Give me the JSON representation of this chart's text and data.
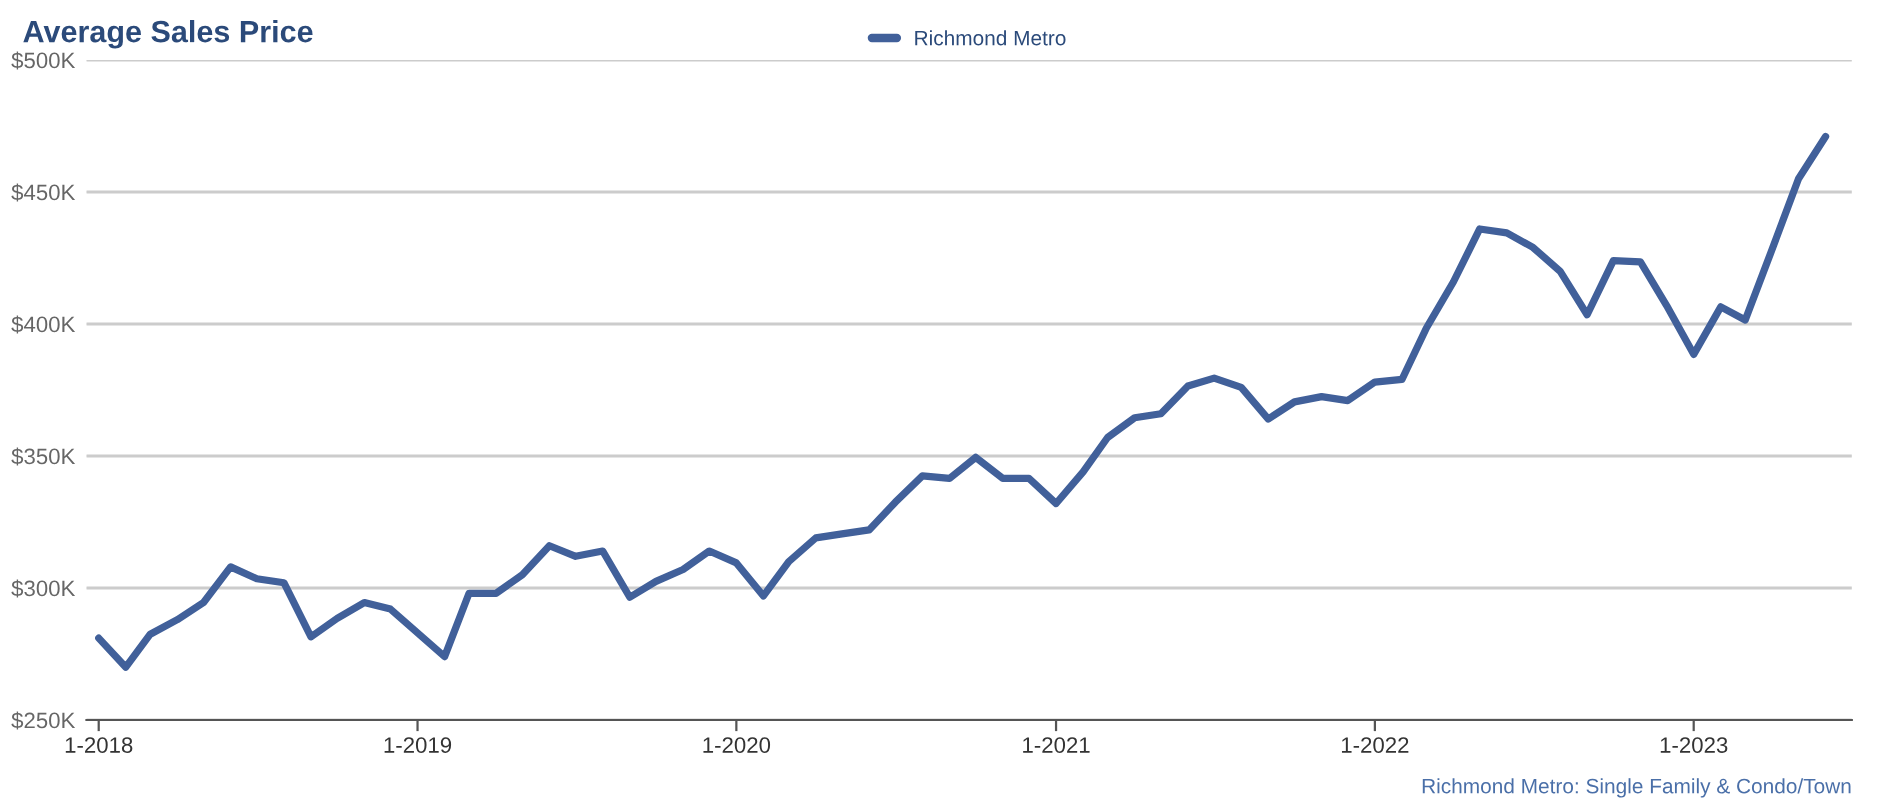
{
  "chart_data": {
    "type": "line",
    "title": "Average Sales Price",
    "x": [
      "2018-01",
      "2018-02",
      "2018-03",
      "2018-04",
      "2018-05",
      "2018-06",
      "2018-07",
      "2018-08",
      "2018-09",
      "2018-10",
      "2018-11",
      "2018-12",
      "2019-01",
      "2019-02",
      "2019-03",
      "2019-04",
      "2019-05",
      "2019-06",
      "2019-07",
      "2019-08",
      "2019-09",
      "2019-10",
      "2019-11",
      "2019-12",
      "2020-01",
      "2020-02",
      "2020-03",
      "2020-04",
      "2020-05",
      "2020-06",
      "2020-07",
      "2020-08",
      "2020-09",
      "2020-10",
      "2020-11",
      "2020-12",
      "2021-01",
      "2021-02",
      "2021-03",
      "2021-04",
      "2021-05",
      "2021-06",
      "2021-07",
      "2021-08",
      "2021-09",
      "2021-10",
      "2021-11",
      "2021-12",
      "2022-01",
      "2022-02",
      "2022-03",
      "2022-04",
      "2022-05",
      "2022-06",
      "2022-07",
      "2022-08",
      "2022-09",
      "2022-10",
      "2022-11",
      "2022-12",
      "2023-01",
      "2023-02",
      "2023-03",
      "2023-04",
      "2023-05",
      "2023-06"
    ],
    "series": [
      {
        "name": "Richmond Metro",
        "color": "#41609a",
        "values": [
          281,
          270,
          282.5,
          288,
          294.5,
          308,
          303.5,
          302,
          281.5,
          288.5,
          294.5,
          292,
          283,
          274,
          298,
          298,
          305,
          316,
          312,
          314,
          296.5,
          302.5,
          307,
          314,
          309.5,
          297,
          310,
          319,
          320.5,
          322,
          332.5,
          342.5,
          341.5,
          349.5,
          341.5,
          341.5,
          332,
          344,
          357,
          364.5,
          366,
          376.5,
          379.5,
          376,
          364,
          370.5,
          372.5,
          371,
          378,
          379,
          398.5,
          416,
          436,
          434.5,
          429,
          420,
          403.5,
          424,
          423.5,
          407,
          388.5,
          406.5,
          401.5,
          428.5,
          455,
          471
        ]
      }
    ],
    "xlim": [
      "2017-12-18",
      "2023-07-01"
    ],
    "xticks": [
      {
        "value": "2018-01",
        "label": "1-2018"
      },
      {
        "value": "2019-01",
        "label": "1-2019"
      },
      {
        "value": "2020-01",
        "label": "1-2020"
      },
      {
        "value": "2021-01",
        "label": "1-2021"
      },
      {
        "value": "2022-01",
        "label": "1-2022"
      },
      {
        "value": "2023-01",
        "label": "1-2023"
      }
    ],
    "ylim": [
      250,
      500
    ],
    "yticks": [
      {
        "value": 250,
        "label": "$250K"
      },
      {
        "value": 300,
        "label": "$300K"
      },
      {
        "value": 350,
        "label": "$350K"
      },
      {
        "value": 400,
        "label": "$400K"
      },
      {
        "value": 450,
        "label": "$450K"
      },
      {
        "value": 500,
        "label": "$500K"
      }
    ],
    "grid": "y",
    "legend": "top",
    "marker": "none",
    "line_style": "solid",
    "annotations": [
      "Richmond Metro: Single Family & Condo/Town"
    ]
  }
}
